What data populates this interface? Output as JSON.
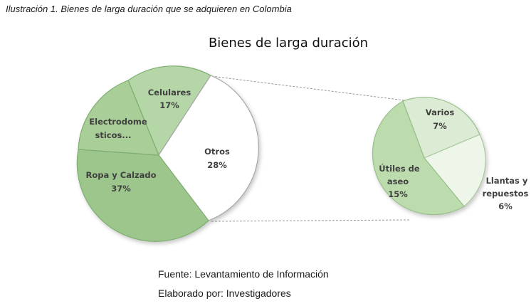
{
  "caption": "Ilustración 1. Bienes de larga duración que se adquieren en Colombia",
  "source_line": "Fuente: Levantamiento de Información",
  "author_line": "Elaborado por: Investigadores",
  "colors": {
    "green_dark": "#9cc68c",
    "green_mid": "#b5d6a7",
    "green_light": "#dcebd4",
    "green_pale": "#eef6ea",
    "white": "#ffffff",
    "outline": "#9a9a9a"
  },
  "chart_data": {
    "type": "pie",
    "title": "Bienes de larga duración",
    "main": {
      "slices": [
        {
          "label": "Celulares",
          "value": 17,
          "value_label": "17%"
        },
        {
          "label": "Otros",
          "value": 28,
          "value_label": "28%"
        },
        {
          "label": "Ropa y Calzado",
          "value": 37,
          "value_label": "37%"
        },
        {
          "label": "Electrodome sticos...",
          "value": 18
        }
      ]
    },
    "breakdown_of": "Otros",
    "secondary": {
      "slices": [
        {
          "label": "Varios",
          "value": 7,
          "value_label": "7%"
        },
        {
          "label": "Llantas y repuestos",
          "value": 6,
          "value_label": "6%"
        },
        {
          "label": "Útiles de aseo",
          "value": 15,
          "value_label": "15%"
        }
      ]
    }
  }
}
